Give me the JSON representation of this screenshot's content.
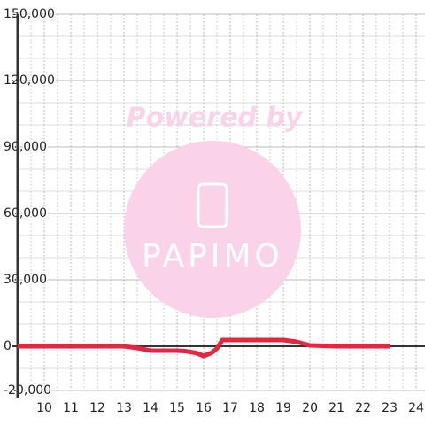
{
  "chart_data": {
    "type": "line",
    "watermark": {
      "top": "Powered by",
      "brand": "PAPIMO"
    },
    "x": [
      9,
      10,
      11,
      12,
      13,
      13.5,
      14,
      14.5,
      15,
      15.3,
      15.7,
      16,
      16.3,
      16.5,
      16.7,
      17,
      18,
      19,
      19.5,
      20,
      21,
      22,
      23
    ],
    "series": [
      {
        "color": "#e8253e",
        "values": [
          0,
          0,
          0,
          0,
          0,
          -800,
          -2000,
          -2000,
          -2000,
          -2200,
          -3000,
          -4400,
          -3000,
          -1000,
          2800,
          2800,
          2800,
          2800,
          2000,
          400,
          0,
          0,
          0
        ]
      }
    ],
    "xlim": [
      9,
      24.33
    ],
    "xticks": [
      10,
      11,
      12,
      13,
      14,
      15,
      16,
      17,
      18,
      19,
      20,
      21,
      22,
      23,
      24
    ],
    "ylim": [
      -20000,
      150000
    ],
    "yticks": [
      {
        "value": -20000,
        "label": "-20,000"
      },
      0,
      {
        "value": 30000,
        "label": "30,000"
      },
      {
        "value": 60000,
        "label": "60,000"
      },
      {
        "value": 90000,
        "label": "90,000"
      },
      {
        "value": 120000,
        "label": "120,000"
      },
      {
        "value": 150000,
        "label": "150,000"
      }
    ],
    "grid": true
  }
}
